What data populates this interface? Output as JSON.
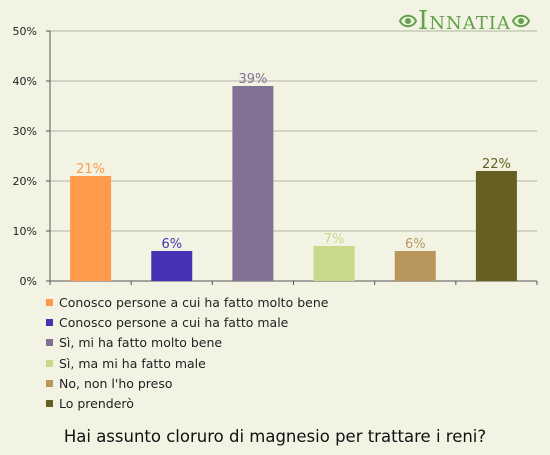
{
  "logo": {
    "text": "Innatia"
  },
  "chart_data": {
    "type": "bar",
    "title": "Hai assunto cloruro di magnesio per trattare i reni?",
    "ylim": [
      0,
      50
    ],
    "y_ticks": [
      0,
      10,
      20,
      30,
      40,
      50
    ],
    "y_tick_labels": [
      "0%",
      "10%",
      "20%",
      "30%",
      "40%",
      "50%"
    ],
    "grid": "horizontal",
    "legend_position": "bottom",
    "categories": [
      "Conosco persone a cui ha fatto molto bene",
      "Conosco persone a cui ha fatto male",
      "Sì, mi ha fatto molto bene",
      "Sì, ma mi ha fatto male",
      "No, non l'ho preso",
      "Lo prenderò"
    ],
    "values": [
      21,
      6,
      39,
      7,
      6,
      22
    ],
    "data_labels": [
      "21%",
      "6%",
      "39%",
      "7%",
      "6%",
      "22%"
    ],
    "colors": [
      "#ff9a4a",
      "#4633b3",
      "#837095",
      "#c8d98a",
      "#b9975c",
      "#675f21"
    ],
    "label_colors": [
      "#ff9a4a",
      "#4633b3",
      "#837095",
      "#c8d98a",
      "#b9975c",
      "#675f21"
    ]
  }
}
